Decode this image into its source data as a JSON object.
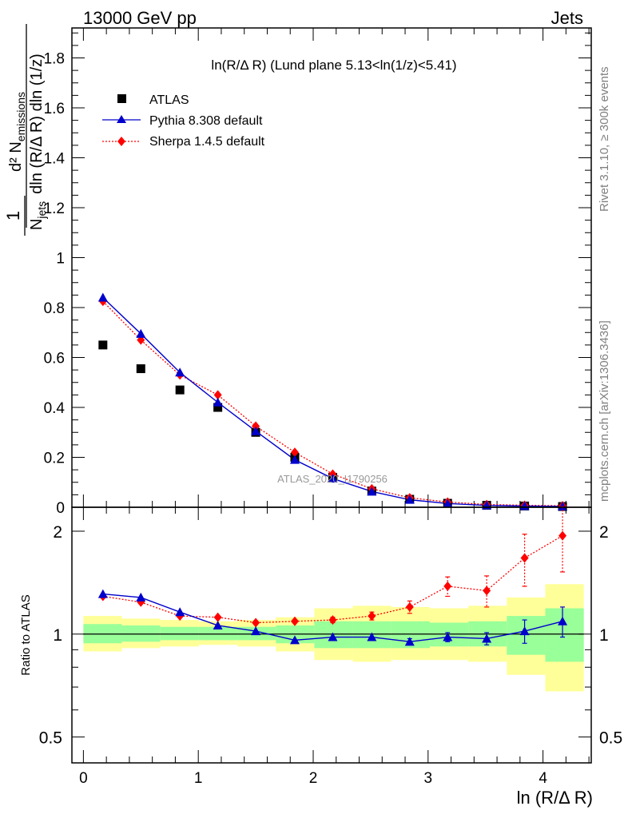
{
  "header": {
    "left_label": "13000 GeV pp",
    "right_label": "Jets"
  },
  "side_labels": {
    "rivet": "Rivet 3.1.10, ≥ 300k events",
    "mcplots": "mcplots.cern.ch [arXiv:1306.3436]"
  },
  "chart_data": {
    "type": "scatter",
    "title": "ln(R/Δ R) (Lund plane 5.13<ln(1/z)<5.41)",
    "watermark": "ATLAS_2020_I1790256",
    "xlabel": "ln (R/Δ R)",
    "ylabel_main": "1/N_jets d²N_emissions / dln(R/Δ R) dln(1/z)",
    "ylabel_ratio": "Ratio to ATLAS",
    "xlim": [
      -0.1,
      4.42
    ],
    "ylim_main": [
      0,
      1.92
    ],
    "ylim_ratio": [
      0.42,
      2.35
    ],
    "x_ticks": [
      0,
      1,
      2,
      3,
      4
    ],
    "y_ticks_main": [
      0,
      0.2,
      0.4,
      0.6,
      0.8,
      1,
      1.2,
      1.4,
      1.6,
      1.8
    ],
    "y_ticks_ratio": [
      0.5,
      1,
      2
    ],
    "x": [
      0.17,
      0.5,
      0.84,
      1.17,
      1.5,
      1.84,
      2.17,
      2.51,
      2.84,
      3.17,
      3.51,
      3.84,
      4.17
    ],
    "bin_edges": [
      0,
      0.335,
      0.67,
      1.005,
      1.34,
      1.675,
      2.01,
      2.345,
      2.68,
      3.015,
      3.35,
      3.685,
      4.02,
      4.355
    ],
    "legend": [
      "ATLAS",
      "Pythia 8.308 default",
      "Sherpa 1.4.5 default"
    ],
    "series": [
      {
        "name": "ATLAS",
        "color": "#000000",
        "marker": "square",
        "values": [
          0.65,
          0.555,
          0.47,
          0.4,
          0.3,
          0.2,
          0.12,
          0.065,
          0.032,
          0.016,
          0.008,
          0.005,
          0.003
        ]
      },
      {
        "name": "Pythia 8.308 default",
        "color": "#0000cc",
        "marker": "triangle",
        "values": [
          0.84,
          0.695,
          0.54,
          0.42,
          0.305,
          0.19,
          0.115,
          0.063,
          0.03,
          0.015,
          0.0075,
          0.0048,
          0.0032
        ]
      },
      {
        "name": "Sherpa 1.4.5 default",
        "color": "#ff0000",
        "marker": "diamond",
        "values": [
          0.825,
          0.67,
          0.53,
          0.45,
          0.325,
          0.22,
          0.133,
          0.074,
          0.038,
          0.021,
          0.011,
          0.008,
          0.006
        ]
      }
    ],
    "ratio": {
      "pythia": [
        1.31,
        1.28,
        1.16,
        1.06,
        1.02,
        0.96,
        0.98,
        0.98,
        0.95,
        0.98,
        0.97,
        1.02,
        1.09
      ],
      "pythia_err": [
        0,
        0,
        0,
        0,
        0,
        0,
        0,
        0,
        0.02,
        0.03,
        0.04,
        0.08,
        0.11
      ],
      "sherpa": [
        1.29,
        1.24,
        1.13,
        1.12,
        1.08,
        1.09,
        1.1,
        1.13,
        1.2,
        1.38,
        1.34,
        1.67,
        1.94
      ],
      "sherpa_err": [
        0,
        0,
        0,
        0,
        0,
        0,
        0.02,
        0.03,
        0.05,
        0.09,
        0.14,
        0.29,
        0.42
      ],
      "band_stat": [
        [
          0.94,
          1.07
        ],
        [
          0.95,
          1.06
        ],
        [
          0.96,
          1.05
        ],
        [
          0.96,
          1.05
        ],
        [
          0.96,
          1.05
        ],
        [
          0.94,
          1.06
        ],
        [
          0.91,
          1.09
        ],
        [
          0.91,
          1.09
        ],
        [
          0.91,
          1.09
        ],
        [
          0.92,
          1.08
        ],
        [
          0.92,
          1.09
        ],
        [
          0.87,
          1.13
        ],
        [
          0.83,
          1.19
        ]
      ],
      "band_tot": [
        [
          0.89,
          1.13
        ],
        [
          0.91,
          1.11
        ],
        [
          0.92,
          1.1
        ],
        [
          0.93,
          1.09
        ],
        [
          0.92,
          1.1
        ],
        [
          0.89,
          1.12
        ],
        [
          0.84,
          1.19
        ],
        [
          0.83,
          1.21
        ],
        [
          0.84,
          1.2
        ],
        [
          0.84,
          1.19
        ],
        [
          0.83,
          1.21
        ],
        [
          0.76,
          1.28
        ],
        [
          0.68,
          1.4
        ]
      ],
      "stat_color": "#99ff99",
      "tot_color": "#ffff99"
    }
  }
}
